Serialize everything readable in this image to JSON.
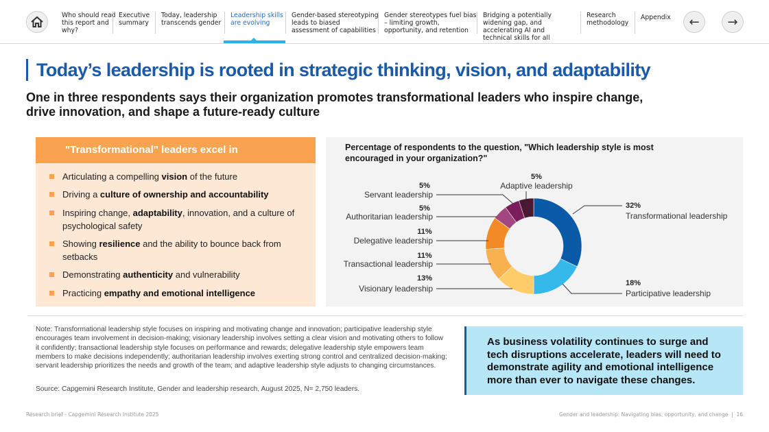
{
  "nav": {
    "items": [
      {
        "label": "Who should read this report and why?"
      },
      {
        "label": "Executive summary"
      },
      {
        "label": "Today, leadership transcends gender"
      },
      {
        "label": "Leadership skills are evolving",
        "active": true
      },
      {
        "label": "Gender-based stereotyping leads to biased assessment of capabilities"
      },
      {
        "label": "Gender stereotypes fuel bias – limiting growth, opportunity, and retention"
      },
      {
        "label": "Bridging a potentially widening gap, and accelerating AI and technical skills for all"
      },
      {
        "label": "Research methodology"
      },
      {
        "label": "Appendix"
      }
    ],
    "home_icon": "home-icon",
    "prev_icon": "arrow-left-icon",
    "next_icon": "arrow-right-icon"
  },
  "page": {
    "title": "Today’s leadership is rooted in strategic thinking, vision, and adaptability",
    "subtitle": "One in three respondents says their organization promotes transformational leaders who inspire change, drive innovation, and shape a future-ready culture"
  },
  "left_panel": {
    "heading": "\"Transformational\" leaders excel in",
    "bullets": [
      {
        "pre": "Articulating a compelling ",
        "bold": "vision",
        "post": " of the future"
      },
      {
        "pre": "Driving a ",
        "bold": "culture of ownership and accountability",
        "post": ""
      },
      {
        "pre": "Inspiring change, ",
        "bold": "adaptability",
        "post": ", innovation, and a culture of psychological safety"
      },
      {
        "pre": "Showing ",
        "bold": "resilience",
        "post": " and the ability to bounce back from setbacks"
      },
      {
        "pre": "Demonstrating ",
        "bold": "authenticity",
        "post": " and vulnerability"
      },
      {
        "pre": "Practicing ",
        "bold": "empathy and emotional intelligence",
        "post": ""
      }
    ]
  },
  "chart_data": {
    "type": "pie",
    "variant": "donut",
    "title": "Percentage of respondents to the question, \"Which leadership style is most encouraged in your organization?\"",
    "slices": [
      {
        "name": "Transformational leadership",
        "value": 32,
        "label": "32%",
        "color": "#0b5aa8"
      },
      {
        "name": "Participative leadership",
        "value": 18,
        "label": "18%",
        "color": "#35b8ea"
      },
      {
        "name": "Visionary leadership",
        "value": 13,
        "label": "13%",
        "color": "#ffcd67"
      },
      {
        "name": "Transactional leadership",
        "value": 11,
        "label": "11%",
        "color": "#f9b04e"
      },
      {
        "name": "Delegative leadership",
        "value": 11,
        "label": "11%",
        "color": "#f28a25"
      },
      {
        "name": "Authoritarian leadership",
        "value": 5,
        "label": "5%",
        "color": "#a2467f"
      },
      {
        "name": "Servant leadership",
        "value": 5,
        "label": "5%",
        "color": "#7b1c5d"
      },
      {
        "name": "Adaptive leadership",
        "value": 5,
        "label": "5%",
        "color": "#4a1830"
      }
    ]
  },
  "note": "Note: Transformational leadership style focuses on inspiring and motivating change and innovation; participative leadership style encourages team involvement in decision-making; visionary leadership involves setting a clear vision and motivating others to follow it confidently; transactional leadership style focuses on performance and rewards; delegative leadership style empowers team members to make decisions independently; authoritarian leadership involves exerting strong control and centralized decision-making; servant leadership prioritizes the needs and growth of the team; and adaptive leadership style adjusts to changing circumstances.",
  "source": "Source: Capgemini Research Institute, Gender and leadership research, August 2025, N= 2,750 leaders.",
  "callout": "As business volatility continues to surge and tech disruptions accelerate, leaders will need to demonstrate agility and emotional intelligence more than ever to navigate these changes.",
  "footer": {
    "left": "Research brief - Capgemini Research Institute 2025",
    "right": "Gender and leadership: Navigating bias, opportunity, and change",
    "page_number": "16"
  }
}
